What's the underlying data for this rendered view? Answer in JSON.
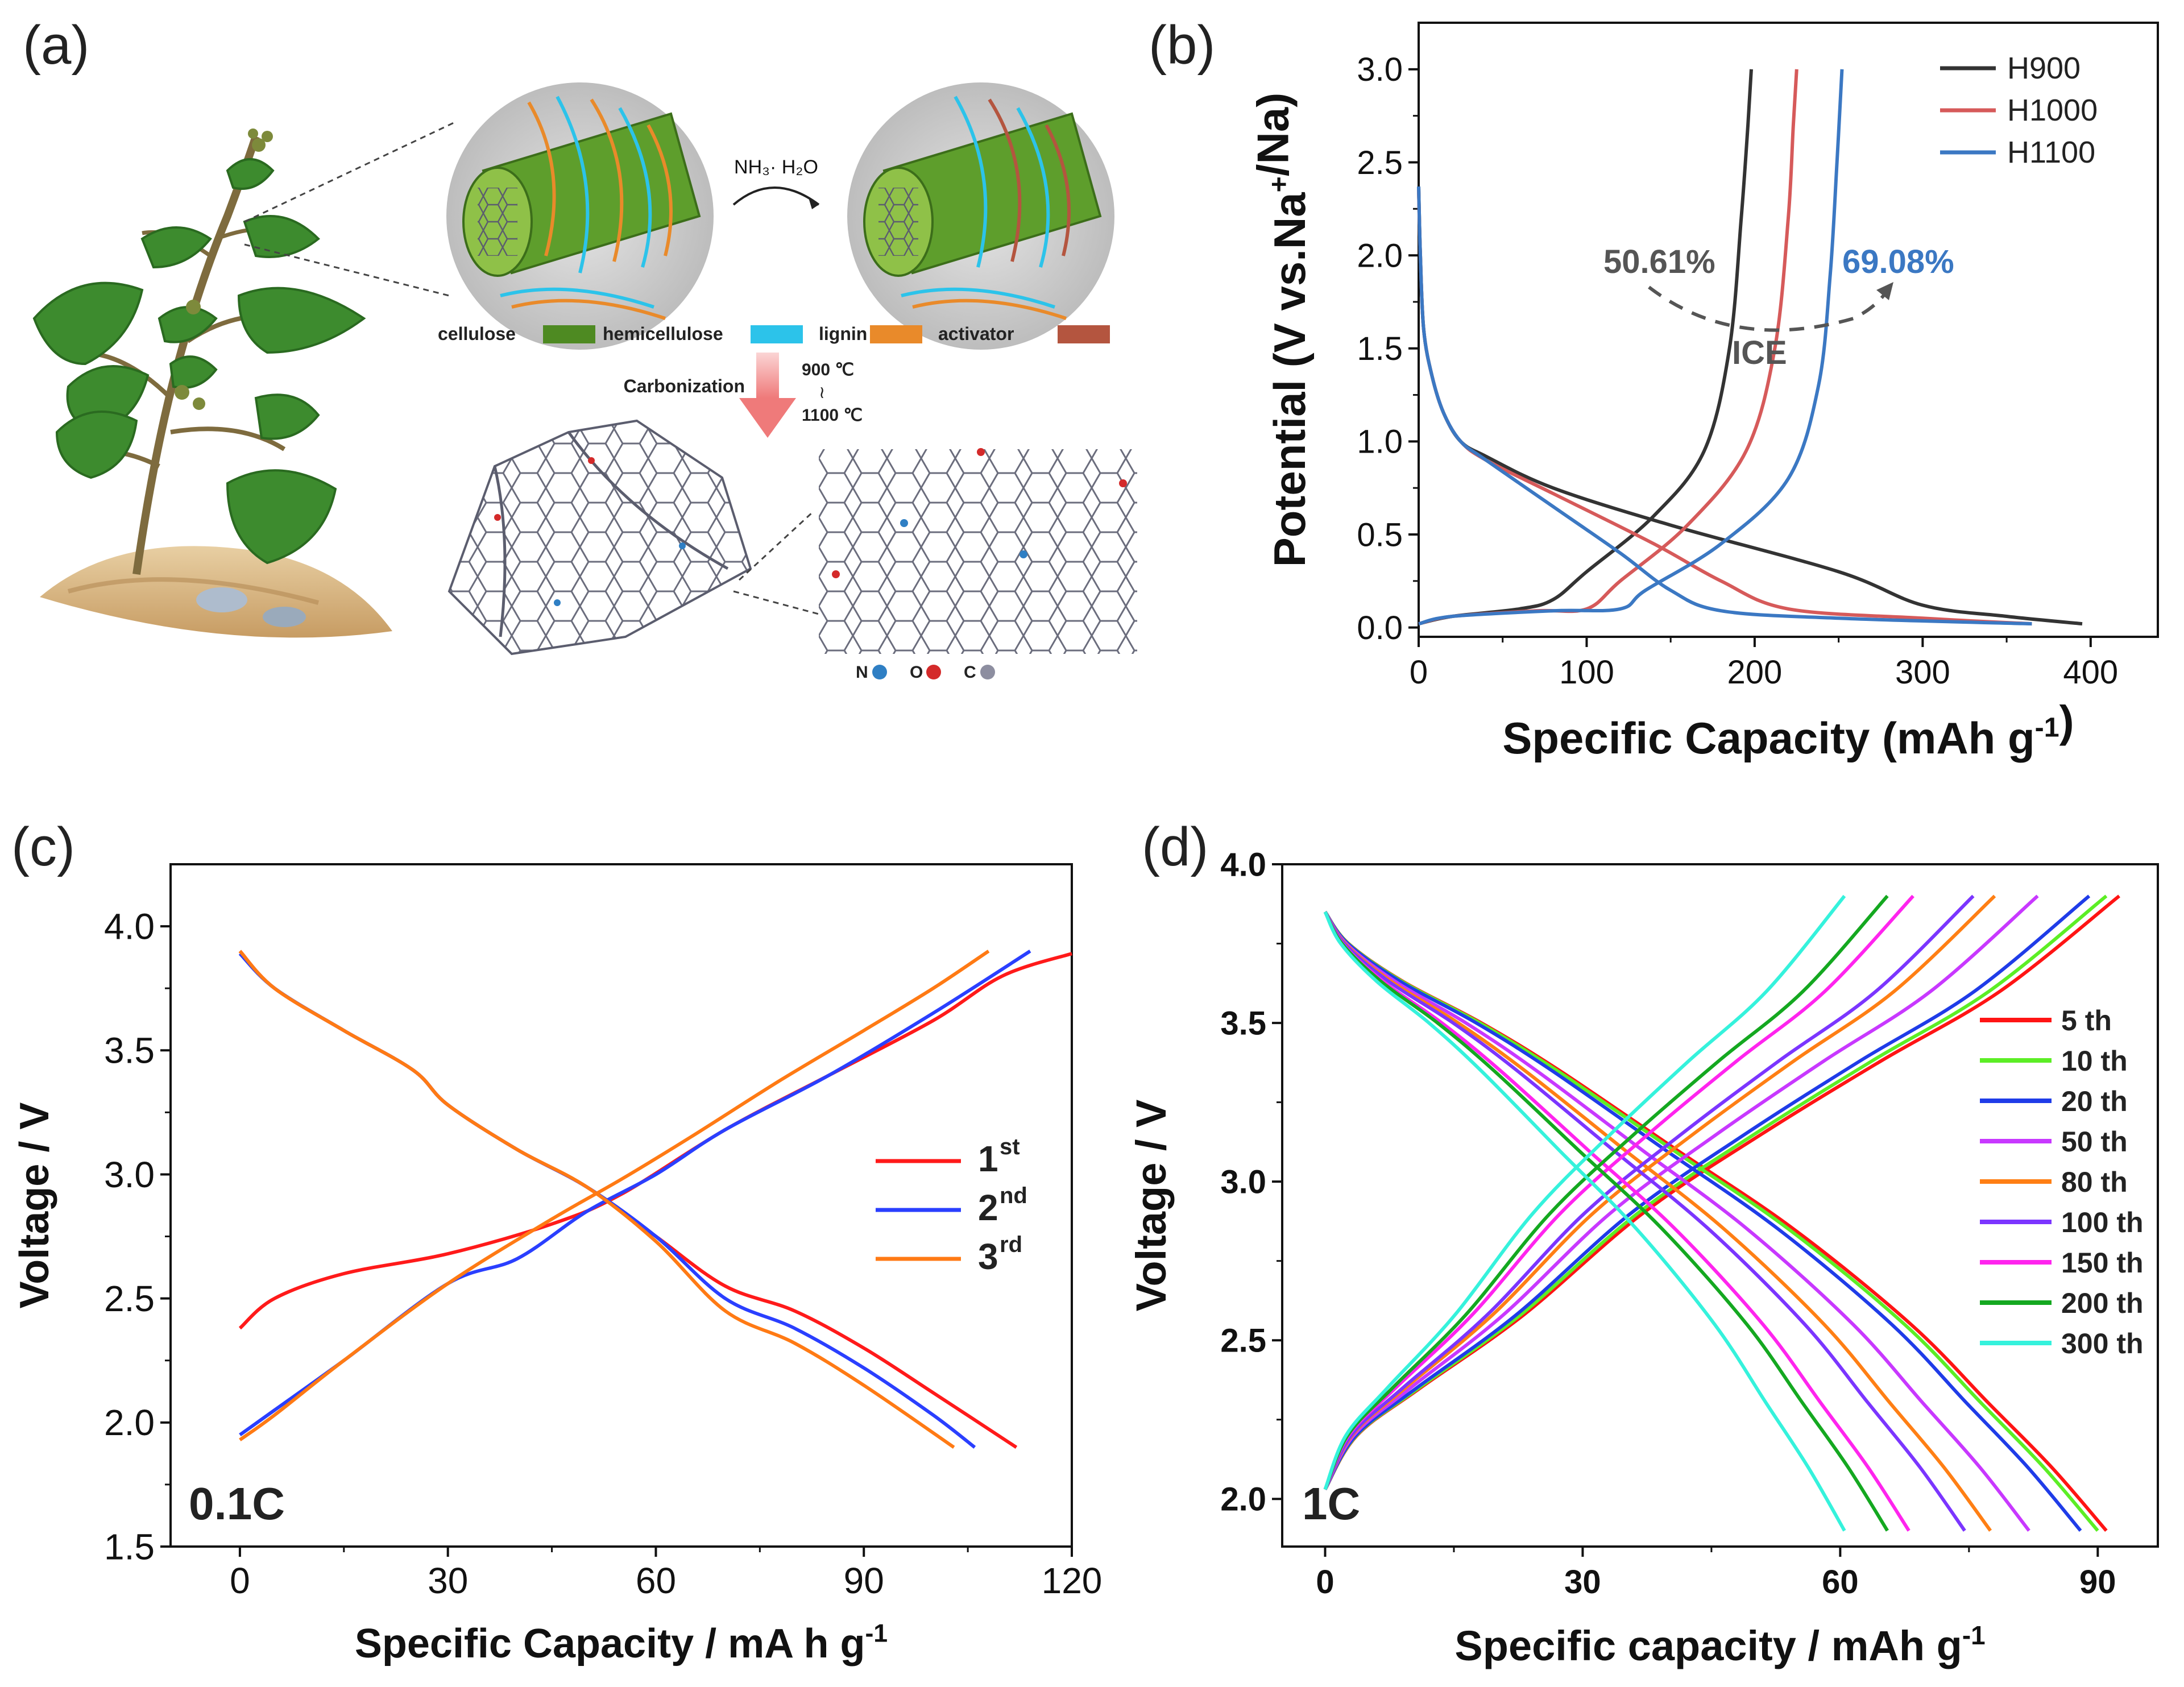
{
  "panels": {
    "a": {
      "letter": "(a)"
    },
    "b": {
      "letter": "(b)"
    },
    "c": {
      "letter": "(c)"
    },
    "d": {
      "letter": "(d)"
    }
  },
  "illustration": {
    "reagent": "NH₃· H₂O",
    "legend": [
      {
        "label": "cellulose",
        "color": "#4e8a22"
      },
      {
        "label": "hemicellulose",
        "color": "#2cc3ea"
      },
      {
        "label": "lignin",
        "color": "#e98a2a"
      },
      {
        "label": "activator",
        "color": "#b4553f"
      }
    ],
    "process": "Carbonization",
    "temp_high": "900 ℃",
    "temp_sep": "≀",
    "temp_low": "1100 ℃",
    "atoms": [
      {
        "label": "N",
        "color": "#2f7fc4"
      },
      {
        "label": "O",
        "color": "#d42a2a"
      },
      {
        "label": "C",
        "color": "#8d8ea0"
      }
    ],
    "colors": {
      "fiber": "#5e9e2c",
      "circle_bg": "#cfcfcf",
      "leaf": "#3d8b2e",
      "stem": "#7e6b3e",
      "soil": "#d8b98a",
      "lattice": "#5b5d6e"
    }
  },
  "chart_data": [
    {
      "panel": "b",
      "type": "line",
      "xlabel": "Specific Capacity (mAh g⁻¹)",
      "ylabel": "Potential (V vs.Na⁺/Na)",
      "xlim": [
        0,
        440
      ],
      "ylim": [
        -0.05,
        3.25
      ],
      "xticks": [
        0,
        100,
        200,
        300,
        400
      ],
      "yticks": [
        0.0,
        0.5,
        1.0,
        1.5,
        2.0,
        2.5,
        3.0
      ],
      "xtick_labels": [
        "0",
        "100",
        "200",
        "300",
        "400"
      ],
      "ytick_labels": [
        "0.0",
        "0.5",
        "1.0",
        "1.5",
        "2.0",
        "2.5",
        "3.0"
      ],
      "legend_position": "top-right",
      "annotations": {
        "left": "50.61%",
        "right": "69.08%",
        "center": "ICE"
      },
      "series": [
        {
          "name": "H900",
          "color": "#333333",
          "discharge": [
            [
              0,
              2.37
            ],
            [
              1,
              2.0
            ],
            [
              3,
              1.6
            ],
            [
              8,
              1.35
            ],
            [
              15,
              1.15
            ],
            [
              25,
              1.0
            ],
            [
              40,
              0.92
            ],
            [
              80,
              0.75
            ],
            [
              150,
              0.55
            ],
            [
              250,
              0.3
            ],
            [
              300,
              0.12
            ],
            [
              350,
              0.06
            ],
            [
              395,
              0.02
            ]
          ],
          "charge": [
            [
              0,
              0.02
            ],
            [
              20,
              0.06
            ],
            [
              60,
              0.1
            ],
            [
              80,
              0.15
            ],
            [
              100,
              0.3
            ],
            [
              140,
              0.6
            ],
            [
              170,
              0.95
            ],
            [
              185,
              1.5
            ],
            [
              192,
              2.2
            ],
            [
              196,
              2.7
            ],
            [
              198,
              3.0
            ]
          ]
        },
        {
          "name": "H1000",
          "color": "#d65a5a",
          "discharge": [
            [
              0,
              2.35
            ],
            [
              1,
              2.0
            ],
            [
              3,
              1.6
            ],
            [
              8,
              1.35
            ],
            [
              15,
              1.15
            ],
            [
              25,
              1.0
            ],
            [
              40,
              0.9
            ],
            [
              80,
              0.72
            ],
            [
              140,
              0.45
            ],
            [
              180,
              0.25
            ],
            [
              220,
              0.1
            ],
            [
              300,
              0.05
            ],
            [
              365,
              0.02
            ]
          ],
          "charge": [
            [
              0,
              0.02
            ],
            [
              20,
              0.06
            ],
            [
              70,
              0.09
            ],
            [
              100,
              0.1
            ],
            [
              120,
              0.25
            ],
            [
              160,
              0.55
            ],
            [
              195,
              0.95
            ],
            [
              212,
              1.5
            ],
            [
              220,
              2.2
            ],
            [
              223,
              2.7
            ],
            [
              225,
              3.0
            ]
          ]
        },
        {
          "name": "H1100",
          "color": "#3b78c3",
          "discharge": [
            [
              0,
              2.37
            ],
            [
              1,
              2.0
            ],
            [
              3,
              1.6
            ],
            [
              8,
              1.35
            ],
            [
              15,
              1.15
            ],
            [
              25,
              1.0
            ],
            [
              40,
              0.9
            ],
            [
              80,
              0.65
            ],
            [
              120,
              0.4
            ],
            [
              150,
              0.2
            ],
            [
              180,
              0.09
            ],
            [
              250,
              0.05
            ],
            [
              365,
              0.02
            ]
          ],
          "charge": [
            [
              0,
              0.02
            ],
            [
              20,
              0.06
            ],
            [
              80,
              0.09
            ],
            [
              120,
              0.1
            ],
            [
              135,
              0.2
            ],
            [
              180,
              0.45
            ],
            [
              220,
              0.8
            ],
            [
              238,
              1.3
            ],
            [
              245,
              1.9
            ],
            [
              249,
              2.5
            ],
            [
              252,
              3.0
            ]
          ]
        }
      ]
    },
    {
      "panel": "c",
      "type": "line",
      "xlabel": "Specific  Capacity / mA h g⁻¹",
      "ylabel": "Voltage / V",
      "rate_label": "0.1C",
      "xlim": [
        -10,
        120
      ],
      "ylim": [
        1.5,
        4.25
      ],
      "xticks": [
        0,
        30,
        60,
        90,
        120
      ],
      "yticks": [
        1.5,
        2.0,
        2.5,
        3.0,
        3.5,
        4.0
      ],
      "xtick_labels": [
        "0",
        "30",
        "60",
        "90",
        "120"
      ],
      "ytick_labels": [
        "1.5",
        "2.0",
        "2.5",
        "3.0",
        "3.5",
        "4.0"
      ],
      "legend_position": "center-right",
      "series": [
        {
          "name": "1",
          "sup": "st",
          "color": "#ff1a1a",
          "discharge": [
            [
              0,
              3.9
            ],
            [
              5,
              3.75
            ],
            [
              15,
              3.58
            ],
            [
              25,
              3.42
            ],
            [
              30,
              3.28
            ],
            [
              40,
              3.1
            ],
            [
              50,
              2.95
            ],
            [
              60,
              2.75
            ],
            [
              70,
              2.55
            ],
            [
              80,
              2.45
            ],
            [
              90,
              2.3
            ],
            [
              100,
              2.12
            ],
            [
              112,
              1.9
            ]
          ],
          "charge": [
            [
              0,
              2.38
            ],
            [
              5,
              2.5
            ],
            [
              15,
              2.6
            ],
            [
              30,
              2.68
            ],
            [
              45,
              2.8
            ],
            [
              55,
              2.92
            ],
            [
              70,
              3.18
            ],
            [
              85,
              3.4
            ],
            [
              100,
              3.62
            ],
            [
              110,
              3.8
            ],
            [
              120,
              3.89
            ]
          ]
        },
        {
          "name": "2",
          "sup": "nd",
          "color": "#2a3fff",
          "discharge": [
            [
              0,
              3.89
            ],
            [
              5,
              3.75
            ],
            [
              15,
              3.58
            ],
            [
              25,
              3.42
            ],
            [
              30,
              3.28
            ],
            [
              40,
              3.1
            ],
            [
              50,
              2.95
            ],
            [
              60,
              2.75
            ],
            [
              70,
              2.5
            ],
            [
              80,
              2.38
            ],
            [
              90,
              2.22
            ],
            [
              100,
              2.03
            ],
            [
              106,
              1.9
            ]
          ],
          "charge": [
            [
              0,
              1.95
            ],
            [
              5,
              2.05
            ],
            [
              15,
              2.25
            ],
            [
              30,
              2.56
            ],
            [
              40,
              2.66
            ],
            [
              50,
              2.85
            ],
            [
              60,
              3.0
            ],
            [
              70,
              3.18
            ],
            [
              85,
              3.4
            ],
            [
              100,
              3.65
            ],
            [
              114,
              3.9
            ]
          ]
        },
        {
          "name": "3",
          "sup": "rd",
          "color": "#ff7a14",
          "discharge": [
            [
              0,
              3.9
            ],
            [
              5,
              3.75
            ],
            [
              15,
              3.58
            ],
            [
              25,
              3.42
            ],
            [
              30,
              3.28
            ],
            [
              40,
              3.1
            ],
            [
              50,
              2.95
            ],
            [
              60,
              2.73
            ],
            [
              70,
              2.45
            ],
            [
              80,
              2.32
            ],
            [
              90,
              2.15
            ],
            [
              103,
              1.9
            ]
          ],
          "charge": [
            [
              0,
              1.93
            ],
            [
              5,
              2.03
            ],
            [
              15,
              2.25
            ],
            [
              30,
              2.56
            ],
            [
              45,
              2.82
            ],
            [
              55,
              2.98
            ],
            [
              65,
              3.15
            ],
            [
              78,
              3.38
            ],
            [
              90,
              3.58
            ],
            [
              100,
              3.75
            ],
            [
              108,
              3.9
            ]
          ]
        }
      ]
    },
    {
      "panel": "d",
      "type": "line",
      "xlabel": "Specific capacity / mAh g⁻¹",
      "ylabel": "Voltage / V",
      "rate_label": "1C",
      "xlim": [
        -5,
        97
      ],
      "ylim": [
        1.85,
        4.0
      ],
      "xticks": [
        0,
        30,
        60,
        90
      ],
      "yticks": [
        2.0,
        2.5,
        3.0,
        3.5,
        4.0
      ],
      "xtick_labels": [
        "0",
        "30",
        "60",
        "90"
      ],
      "ytick_labels": [
        "2.0",
        "2.5",
        "3.0",
        "3.5",
        "4.0"
      ],
      "legend_position": "right",
      "series": [
        {
          "name": "5 th",
          "color": "#ff1414",
          "discharge_end": 91,
          "charge_end": 92.5
        },
        {
          "name": "10 th",
          "color": "#5cee25",
          "discharge_end": 90,
          "charge_end": 91
        },
        {
          "name": "20 th",
          "color": "#1f3ce8",
          "discharge_end": 88,
          "charge_end": 89
        },
        {
          "name": "50 th",
          "color": "#c838ff",
          "discharge_end": 82,
          "charge_end": 83
        },
        {
          "name": "80 th",
          "color": "#ff7f14",
          "discharge_end": 77.5,
          "charge_end": 78
        },
        {
          "name": "100 th",
          "color": "#7b35ff",
          "discharge_end": 74.5,
          "charge_end": 75.5
        },
        {
          "name": "150 th",
          "color": "#ff24ee",
          "discharge_end": 68,
          "charge_end": 68.5
        },
        {
          "name": "200 th",
          "color": "#14a820",
          "discharge_end": 65.5,
          "charge_end": 65.5
        },
        {
          "name": "300 th",
          "color": "#35f2dc",
          "discharge_end": 60.5,
          "charge_end": 60.5
        }
      ]
    }
  ]
}
